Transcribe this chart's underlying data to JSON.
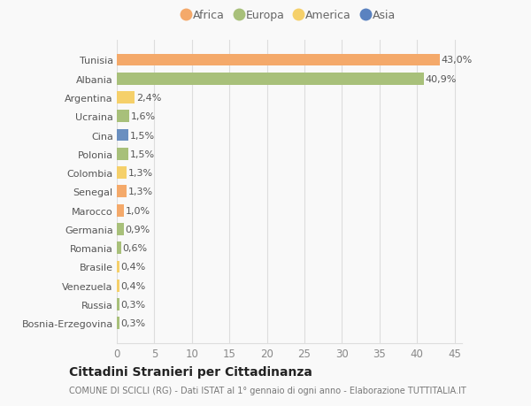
{
  "countries": [
    "Tunisia",
    "Albania",
    "Argentina",
    "Ucraina",
    "Cina",
    "Polonia",
    "Colombia",
    "Senegal",
    "Marocco",
    "Germania",
    "Romania",
    "Brasile",
    "Venezuela",
    "Russia",
    "Bosnia-Erzegovina"
  ],
  "values": [
    43.0,
    40.9,
    2.4,
    1.6,
    1.5,
    1.5,
    1.3,
    1.3,
    1.0,
    0.9,
    0.6,
    0.4,
    0.4,
    0.3,
    0.3
  ],
  "labels": [
    "43,0%",
    "40,9%",
    "2,4%",
    "1,6%",
    "1,5%",
    "1,5%",
    "1,3%",
    "1,3%",
    "1,0%",
    "0,9%",
    "0,6%",
    "0,4%",
    "0,4%",
    "0,3%",
    "0,3%"
  ],
  "colors": [
    "#F4A96A",
    "#A8C07A",
    "#F5D06A",
    "#A8C07A",
    "#6A8FC0",
    "#A8C07A",
    "#F5D06A",
    "#F4A96A",
    "#F4A96A",
    "#A8C07A",
    "#A8C07A",
    "#F5D06A",
    "#F5D06A",
    "#A8C07A",
    "#A8C07A"
  ],
  "categories": [
    "Africa",
    "Europa",
    "America",
    "Asia"
  ],
  "legend_colors": [
    "#F4A96A",
    "#A8C07A",
    "#F5D06A",
    "#5A82C0"
  ],
  "xlim": [
    0,
    46
  ],
  "xticks": [
    0,
    5,
    10,
    15,
    20,
    25,
    30,
    35,
    40,
    45
  ],
  "title": "Cittadini Stranieri per Cittadinanza",
  "subtitle": "COMUNE DI SCICLI (RG) - Dati ISTAT al 1° gennaio di ogni anno - Elaborazione TUTTITALIA.IT",
  "background_color": "#f9f9f9",
  "grid_color": "#dddddd"
}
